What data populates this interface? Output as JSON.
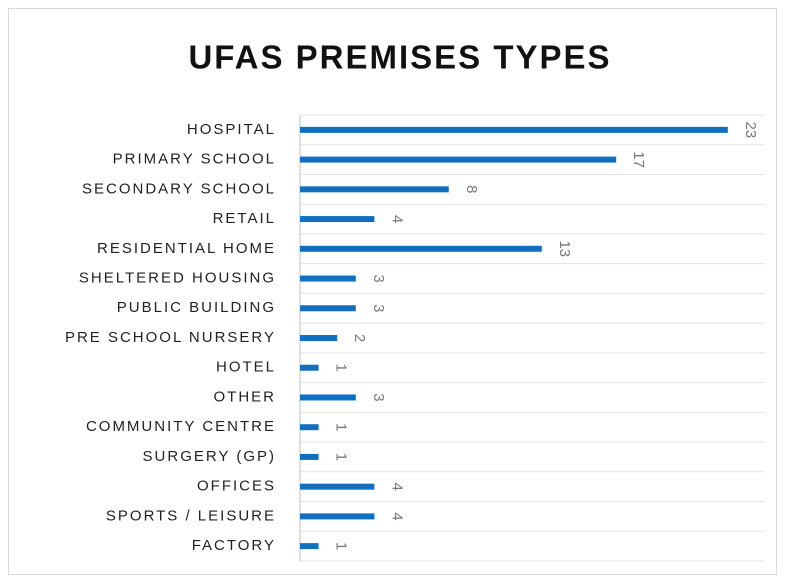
{
  "chart_data": {
    "type": "bar",
    "orientation": "horizontal",
    "title": "UFAS PREMISES TYPES",
    "categories": [
      "HOSPITAL",
      "PRIMARY SCHOOL",
      "SECONDARY SCHOOL",
      "RETAIL",
      "RESIDENTIAL HOME",
      "SHELTERED HOUSING",
      "PUBLIC BUILDING",
      "PRE SCHOOL NURSERY",
      "HOTEL",
      "OTHER",
      "COMMUNITY CENTRE",
      "SURGERY (GP)",
      "OFFICES",
      "SPORTS / LEISURE",
      "FACTORY"
    ],
    "values": [
      23,
      17,
      8,
      4,
      13,
      3,
      3,
      2,
      1,
      3,
      1,
      1,
      4,
      4,
      1
    ],
    "color": "#0f6fc0",
    "xlim": [
      0,
      25
    ],
    "data_labels": true
  }
}
